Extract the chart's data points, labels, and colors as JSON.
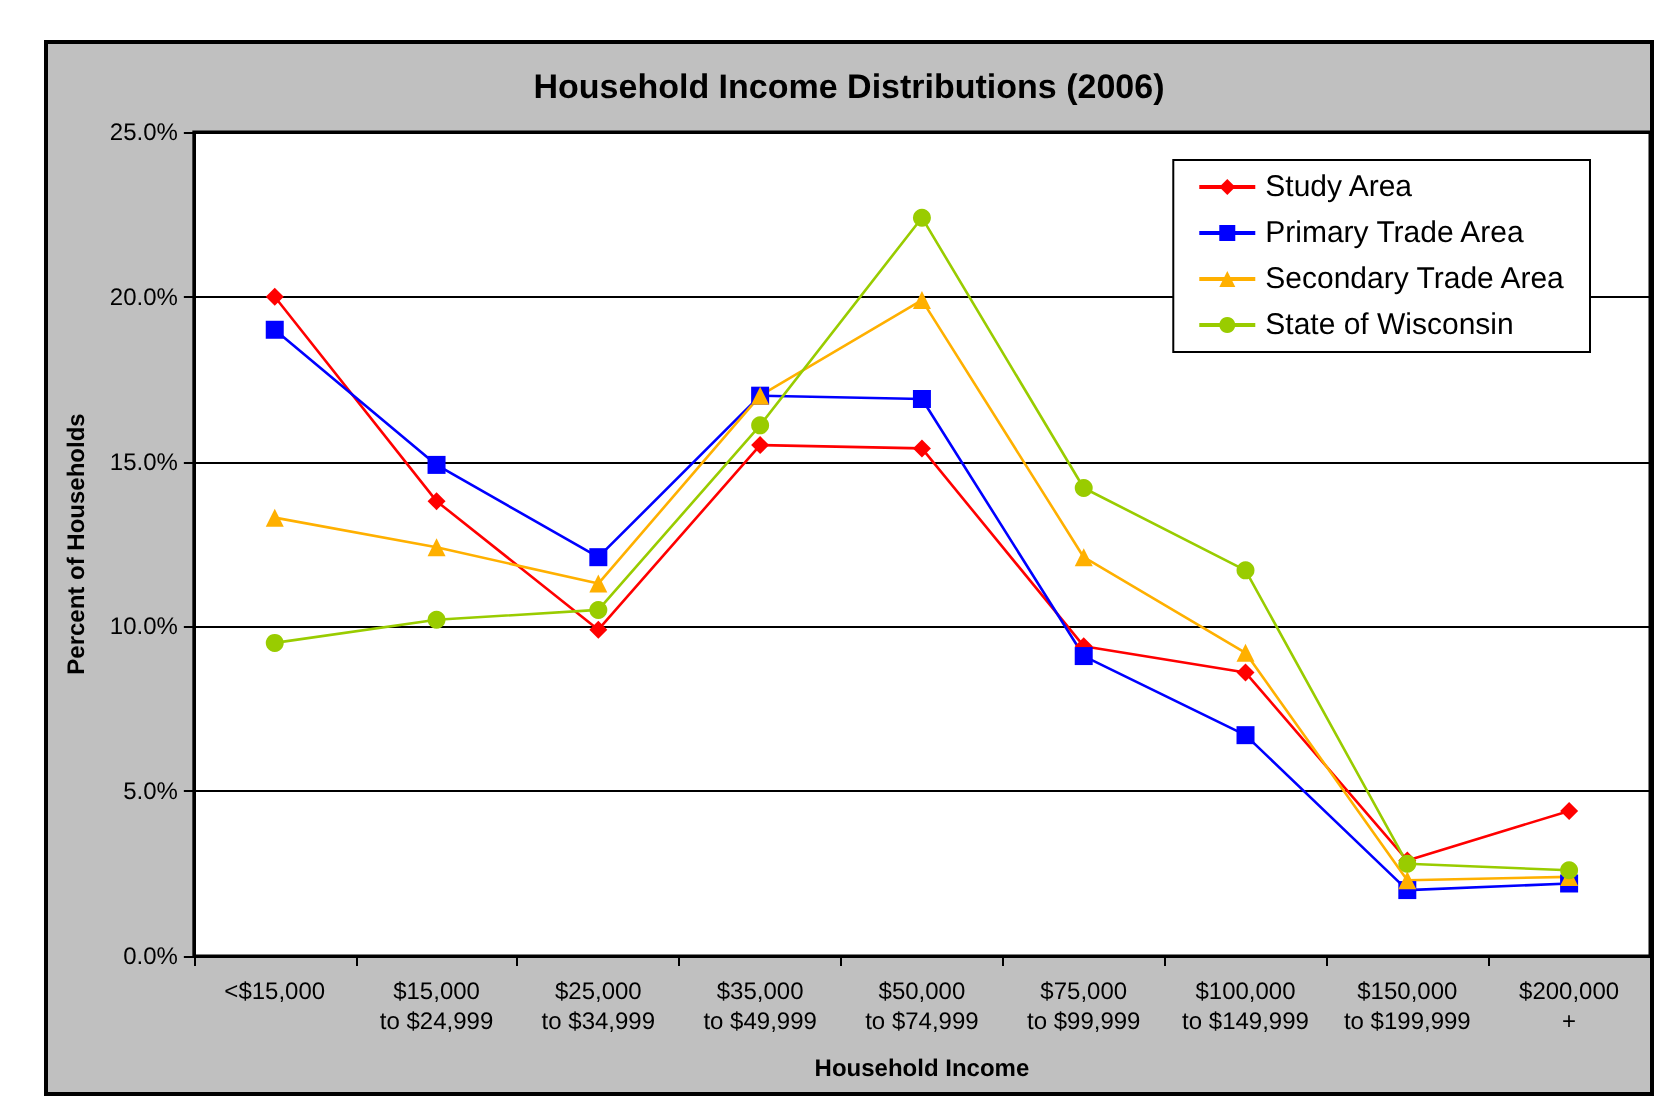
{
  "chart_data": {
    "type": "line",
    "title": "Household Income Distributions (2006)",
    "xlabel": "Household Income",
    "ylabel": "Percent of Households",
    "categories": [
      "<$15,000",
      "$15,000\nto $24,999",
      "$25,000\nto $34,999",
      "$35,000\nto $49,999",
      "$50,000\nto $74,999",
      "$75,000\nto $99,999",
      "$100,000\nto $149,999",
      "$150,000\nto $199,999",
      "$200,000\n+"
    ],
    "series": [
      {
        "name": "Study Area",
        "color": "#ff0000",
        "marker": "diamond",
        "values": [
          20.0,
          13.8,
          9.9,
          15.5,
          15.4,
          9.4,
          8.6,
          2.9,
          4.4
        ]
      },
      {
        "name": "Primary Trade Area",
        "color": "#0000ff",
        "marker": "square",
        "values": [
          19.0,
          14.9,
          12.1,
          17.0,
          16.9,
          9.1,
          6.7,
          2.0,
          2.2
        ]
      },
      {
        "name": "Secondary Trade Area",
        "color": "#ffb000",
        "marker": "triangle",
        "values": [
          13.3,
          12.4,
          11.3,
          17.0,
          19.9,
          12.1,
          9.2,
          2.3,
          2.4
        ]
      },
      {
        "name": "State of Wisconsin",
        "color": "#99cc00",
        "marker": "circle",
        "values": [
          9.5,
          10.2,
          10.5,
          16.1,
          22.4,
          14.2,
          11.7,
          2.8,
          2.6
        ]
      }
    ],
    "ylim": [
      0,
      25
    ],
    "yticks": [
      {
        "value": 0,
        "label": "0.0%"
      },
      {
        "value": 5,
        "label": "5.0%"
      },
      {
        "value": 10,
        "label": "10.0%"
      },
      {
        "value": 15,
        "label": "15.0%"
      },
      {
        "value": 20,
        "label": "20.0%"
      },
      {
        "value": 25,
        "label": "25.0%"
      }
    ],
    "grid": "y",
    "legend": "top right",
    "line_style": "solid"
  }
}
